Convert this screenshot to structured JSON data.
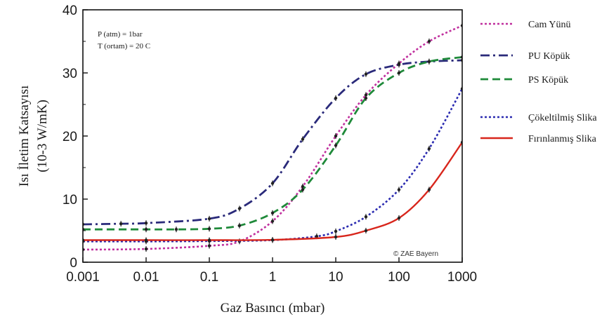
{
  "chart_data": {
    "type": "line",
    "xscale": "log",
    "xlabel": "Gaz Basıncı (mbar)",
    "ylabel_line1": "Isı İletim Katsayısı",
    "ylabel_line2": "(10-3 W/mK)",
    "xlim": [
      0.001,
      1000
    ],
    "ylim": [
      0,
      40
    ],
    "x_ticks": [
      {
        "value": 0.001,
        "label": "0.001"
      },
      {
        "value": 0.01,
        "label": "0.01"
      },
      {
        "value": 0.1,
        "label": "0.1"
      },
      {
        "value": 1,
        "label": "1"
      },
      {
        "value": 10,
        "label": "10"
      },
      {
        "value": 100,
        "label": "100"
      },
      {
        "value": 1000,
        "label": "1000"
      }
    ],
    "y_ticks": [
      {
        "value": 0,
        "label": "0"
      },
      {
        "value": 10,
        "label": "10"
      },
      {
        "value": 20,
        "label": "20"
      },
      {
        "value": 30,
        "label": "30"
      },
      {
        "value": 40,
        "label": "40"
      }
    ],
    "annotations": {
      "conditions_line1": "P (atm) = 1bar",
      "conditions_line2": "T (ortam) = 20 C",
      "credit": "© ZAE Bayern"
    },
    "legend_position": "right-outside",
    "series": [
      {
        "name": "Cam Yünü",
        "color": "#c0309e",
        "dash": "dotted",
        "points": [
          [
            0.001,
            2.0
          ],
          [
            0.01,
            2.1
          ],
          [
            0.1,
            2.6
          ],
          [
            0.3,
            3.3
          ],
          [
            1,
            6.5
          ],
          [
            3,
            12.0
          ],
          [
            10,
            20.0
          ],
          [
            30,
            26.5
          ],
          [
            100,
            31.5
          ],
          [
            300,
            35.0
          ],
          [
            1000,
            37.5
          ]
        ]
      },
      {
        "name": "PU Köpük",
        "color": "#2a2a7a",
        "dash": "dashdot",
        "points": [
          [
            0.001,
            6.0
          ],
          [
            0.004,
            6.1
          ],
          [
            0.01,
            6.2
          ],
          [
            0.1,
            6.9
          ],
          [
            0.3,
            8.5
          ],
          [
            1,
            12.5
          ],
          [
            3,
            19.5
          ],
          [
            10,
            26.0
          ],
          [
            30,
            29.8
          ],
          [
            100,
            31.3
          ],
          [
            300,
            31.8
          ],
          [
            1000,
            32.0
          ]
        ]
      },
      {
        "name": "PS Köpük",
        "color": "#1f8a3a",
        "dash": "dashed",
        "points": [
          [
            0.001,
            5.2
          ],
          [
            0.01,
            5.2
          ],
          [
            0.03,
            5.2
          ],
          [
            0.1,
            5.3
          ],
          [
            0.3,
            5.8
          ],
          [
            1,
            7.8
          ],
          [
            3,
            11.5
          ],
          [
            10,
            18.5
          ],
          [
            30,
            26.0
          ],
          [
            100,
            30.0
          ],
          [
            300,
            31.8
          ],
          [
            1000,
            32.5
          ]
        ]
      },
      {
        "name": "Çökeltilmiş Slika",
        "color": "#2a2ab0",
        "dash": "dotted",
        "points": [
          [
            0.001,
            3.3
          ],
          [
            0.01,
            3.3
          ],
          [
            0.1,
            3.35
          ],
          [
            1,
            3.5
          ],
          [
            5,
            4.1
          ],
          [
            10,
            4.9
          ],
          [
            30,
            7.2
          ],
          [
            100,
            11.5
          ],
          [
            300,
            18.0
          ],
          [
            1000,
            27.5
          ]
        ]
      },
      {
        "name": "Fırınlanmış Slika",
        "color": "#d8261c",
        "dash": "solid",
        "points": [
          [
            0.001,
            3.5
          ],
          [
            0.01,
            3.5
          ],
          [
            0.1,
            3.5
          ],
          [
            1,
            3.55
          ],
          [
            10,
            4.0
          ],
          [
            30,
            5.0
          ],
          [
            100,
            7.0
          ],
          [
            300,
            11.5
          ],
          [
            1000,
            19.0
          ]
        ]
      }
    ]
  }
}
